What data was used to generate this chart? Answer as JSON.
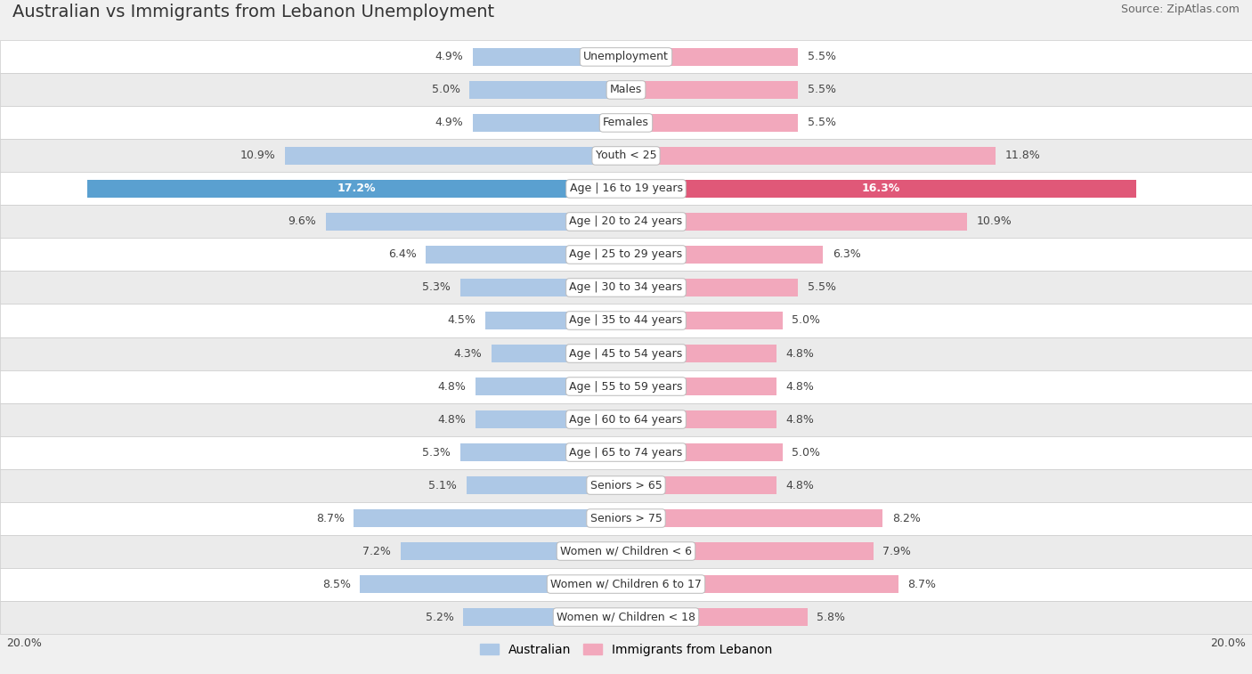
{
  "title": "Australian vs Immigrants from Lebanon Unemployment",
  "source": "Source: ZipAtlas.com",
  "categories": [
    "Unemployment",
    "Males",
    "Females",
    "Youth < 25",
    "Age | 16 to 19 years",
    "Age | 20 to 24 years",
    "Age | 25 to 29 years",
    "Age | 30 to 34 years",
    "Age | 35 to 44 years",
    "Age | 45 to 54 years",
    "Age | 55 to 59 years",
    "Age | 60 to 64 years",
    "Age | 65 to 74 years",
    "Seniors > 65",
    "Seniors > 75",
    "Women w/ Children < 6",
    "Women w/ Children 6 to 17",
    "Women w/ Children < 18"
  ],
  "australian": [
    4.9,
    5.0,
    4.9,
    10.9,
    17.2,
    9.6,
    6.4,
    5.3,
    4.5,
    4.3,
    4.8,
    4.8,
    5.3,
    5.1,
    8.7,
    7.2,
    8.5,
    5.2
  ],
  "immigrants": [
    5.5,
    5.5,
    5.5,
    11.8,
    16.3,
    10.9,
    6.3,
    5.5,
    5.0,
    4.8,
    4.8,
    4.8,
    5.0,
    4.8,
    8.2,
    7.9,
    8.7,
    5.8
  ],
  "australian_color": "#adc8e6",
  "immigrants_color": "#f2a8bc",
  "highlight_australian_color": "#5aa0d0",
  "highlight_immigrants_color": "#e05878",
  "axis_max": 20.0,
  "background_color": "#f0f0f0",
  "row_colors": [
    "#ffffff",
    "#ebebeb"
  ],
  "legend_australian": "Australian",
  "legend_immigrants": "Immigrants from Lebanon",
  "title_fontsize": 14,
  "label_fontsize": 9,
  "value_fontsize": 9,
  "source_fontsize": 9
}
